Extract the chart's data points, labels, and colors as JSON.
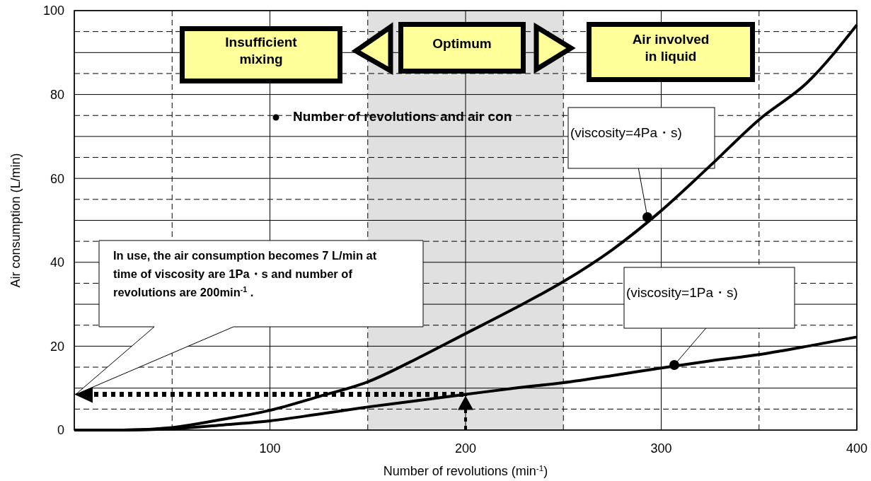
{
  "chart_data": {
    "type": "line",
    "xlabel": "Number of revolutions (min$^{-1}$)",
    "ylabel": "Air consumption (L/min)",
    "xlim": [
      0,
      400
    ],
    "ylim": [
      0,
      100
    ],
    "xticks": [
      {
        "value": 0,
        "label": null
      },
      {
        "value": 50,
        "label": null
      },
      100,
      {
        "value": 150,
        "label": null
      },
      200,
      {
        "value": 250,
        "label": null
      },
      300,
      {
        "value": 350,
        "label": null
      },
      400
    ],
    "yticks": [
      0,
      {
        "value": 5,
        "label": null
      },
      {
        "value": 10,
        "label": null
      },
      {
        "value": 15,
        "label": null
      },
      20,
      {
        "value": 25,
        "label": null
      },
      {
        "value": 30,
        "label": null
      },
      {
        "value": 35,
        "label": null
      },
      40,
      {
        "value": 45,
        "label": null
      },
      {
        "value": 50,
        "label": null
      },
      {
        "value": 55,
        "label": null
      },
      60,
      {
        "value": 65,
        "label": null
      },
      {
        "value": 70,
        "label": null
      },
      {
        "value": 75,
        "label": null
      },
      80,
      {
        "value": 85,
        "label": null
      },
      {
        "value": 90,
        "label": null
      },
      {
        "value": 95,
        "label": null
      },
      100
    ],
    "grid": true,
    "marker": "none",
    "line_style": "solid",
    "series": [
      {
        "color": "#000000",
        "x": [
          0,
          25,
          50,
          75,
          100,
          125,
          150,
          175,
          200,
          225,
          250,
          275,
          300,
          325,
          350,
          375,
          400
        ],
        "values": [
          0,
          0,
          0.6,
          2.5,
          4.7,
          8,
          11.5,
          17,
          23,
          29,
          35.4,
          43,
          52.3,
          63,
          74,
          83,
          96.6
        ]
      },
      {
        "color": "#000000",
        "x": [
          0,
          25,
          50,
          75,
          100,
          125,
          150,
          175,
          200,
          225,
          250,
          275,
          300,
          325,
          350,
          375,
          400
        ],
        "values": [
          0,
          0,
          0.3,
          1.2,
          2.2,
          3.8,
          5.5,
          7,
          8.5,
          10,
          11.3,
          13,
          14.8,
          16.5,
          18,
          20,
          22.2
        ]
      }
    ],
    "bands": [
      {
        "axis": "x",
        "from": 150,
        "to": 250,
        "color": "#e0e0e0"
      }
    ],
    "ref_lines": [
      {
        "axis": "y",
        "value": 8.5,
        "line_style": "dotted",
        "color": "#000000"
      },
      {
        "axis": "x",
        "value": 200,
        "line_style": "dotted",
        "color": "#000000"
      }
    ],
    "annotations": [
      "Insufficient mixing",
      "Optimum",
      "Air involved in liquid",
      "Number of revolutions and air con",
      "(viscosity=4Pa・s)",
      "(viscosity=1Pa・s)",
      "In use, the air consumption becomes 7 L/min at time of viscosity are 1Pa・s and number of revolutions are 200min$^{-1}$ ."
    ]
  }
}
